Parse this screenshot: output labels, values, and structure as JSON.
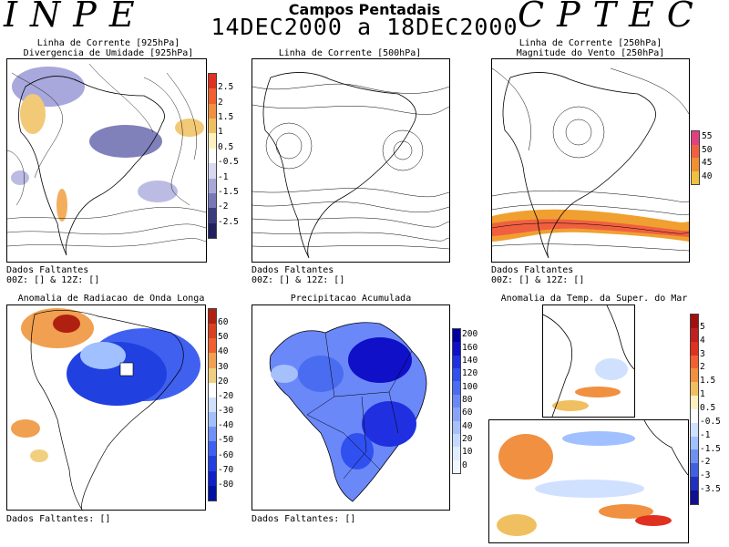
{
  "header": {
    "logo_left": "INPE",
    "logo_right": "CPTEC",
    "title": "Campos Pentadais",
    "date_range": "14DEC2000 a 18DEC2000"
  },
  "panels": {
    "p1": {
      "title_line1": "Linha de Corrente [925hPa]",
      "title_line2": "Divergencia de Umidade [925hPa]",
      "missing_line1": "Dados Faltantes",
      "missing_line2": "00Z: [] & 12Z: []",
      "colorbar": {
        "labels": [
          "2.5",
          "2",
          "1.5",
          "1",
          "0.5",
          "-0.5",
          "-1",
          "-1.5",
          "-2",
          "-2.5"
        ],
        "colors": [
          "#e03020",
          "#f06030",
          "#f09040",
          "#f0c060",
          "#fff0c0",
          "#ffffff",
          "#d8d8f0",
          "#a8a8d8",
          "#7878b8",
          "#3a3a80",
          "#202060"
        ]
      }
    },
    "p2": {
      "title_line1": "Linha de Corrente [500hPa]",
      "missing_line1": "Dados Faltantes",
      "missing_line2": "00Z: [] & 12Z: []"
    },
    "p3": {
      "title_line1": "Linha de Corrente [250hPa]",
      "title_line2": "Magnitude do Vento [250hPa]",
      "missing_line1": "Dados Faltantes",
      "missing_line2": "00Z: [] & 12Z: []",
      "colorbar": {
        "labels": [
          "55",
          "50",
          "45",
          "40"
        ],
        "colors": [
          "#e04080",
          "#f06040",
          "#f09030",
          "#f0c040"
        ]
      }
    },
    "p4": {
      "title": "Anomalia de Radiacao de Onda Longa",
      "missing": "Dados Faltantes: []",
      "colorbar": {
        "labels": [
          "60",
          "50",
          "40",
          "30",
          "20",
          "-20",
          "-30",
          "-40",
          "-50",
          "-60",
          "-70",
          "-80"
        ],
        "colors": [
          "#b02010",
          "#d84020",
          "#f06030",
          "#f0a050",
          "#f0d080",
          "#ffffff",
          "#d0e0ff",
          "#a0c0ff",
          "#7090f8",
          "#4060f0",
          "#2040e0",
          "#1020c8",
          "#0010a0"
        ]
      }
    },
    "p5": {
      "title": "Precipitacao Acumulada",
      "missing": "Dados Faltantes: []",
      "colorbar": {
        "labels": [
          "200",
          "160",
          "140",
          "120",
          "100",
          "80",
          "60",
          "40",
          "20",
          "10",
          "0"
        ],
        "colors": [
          "#0000a0",
          "#1010c8",
          "#2030e0",
          "#3050f0",
          "#4a6cf0",
          "#6a88f8",
          "#88a4f8",
          "#a6c0fc",
          "#c6d8ff",
          "#e0ecff",
          "#f2f8ff"
        ]
      }
    },
    "p6": {
      "title": "Anomalia da Temp. da Super. do Mar",
      "colorbar": {
        "labels": [
          "5",
          "4",
          "3",
          "2",
          "1.5",
          "1",
          "0.5",
          "-0.5",
          "-1",
          "-1.5",
          "-2",
          "-3",
          "-3.5"
        ],
        "colors": [
          "#a01010",
          "#c02020",
          "#e03020",
          "#f06030",
          "#f09040",
          "#f0c060",
          "#fff0c0",
          "#ffffff",
          "#d0e0ff",
          "#a0c0ff",
          "#7090f0",
          "#4060e0",
          "#2030c0",
          "#101090"
        ]
      }
    }
  }
}
